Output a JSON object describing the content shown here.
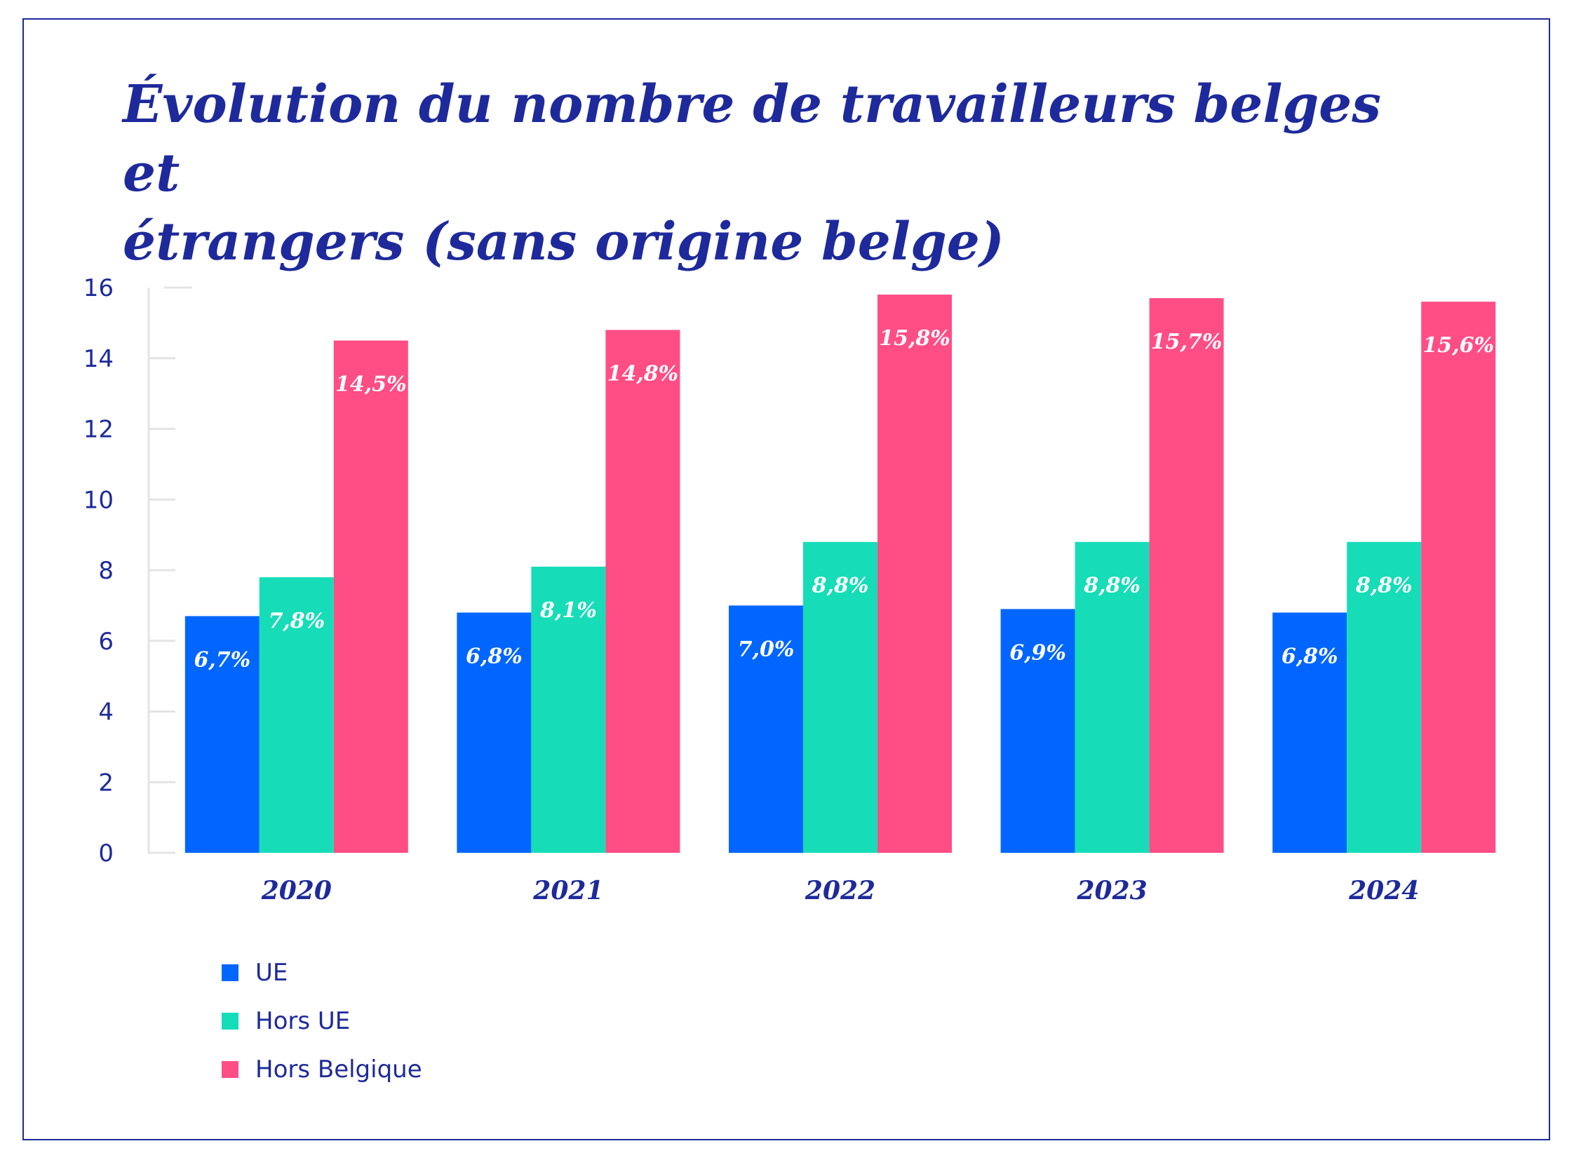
{
  "chart_data": {
    "type": "bar",
    "title": [
      "Évolution du nombre de travailleurs belges et",
      "étrangers  (sans origine belge)"
    ],
    "categories": [
      "2020",
      "2021",
      "2022",
      "2023",
      "2024"
    ],
    "series": [
      {
        "name": "UE",
        "color": "#0066ff",
        "values": [
          6.7,
          6.8,
          7.0,
          6.9,
          6.8
        ],
        "labels": [
          "6,7%",
          "6,8%",
          "7,0%",
          "6,9%",
          "6,8%"
        ]
      },
      {
        "name": "Hors UE",
        "color": "#16ddb7",
        "values": [
          7.8,
          8.1,
          8.8,
          8.8,
          8.8
        ],
        "labels": [
          "7,8%",
          "8,1%",
          "8,8%",
          "8,8%",
          "8,8%"
        ]
      },
      {
        "name": "Hors Belgique",
        "color": "#ff4d85",
        "values": [
          14.5,
          14.8,
          15.8,
          15.7,
          15.6
        ],
        "labels": [
          "14,5%",
          "14,8%",
          "15,8%",
          "15,7%",
          "15,6%"
        ]
      }
    ],
    "yticks": [
      "0",
      "2",
      "4",
      "6",
      "8",
      "10",
      "12",
      "14",
      "16"
    ],
    "ylim": [
      0,
      16
    ],
    "xlabel": "",
    "ylabel": "",
    "grid": false,
    "legend": "bottom-left"
  },
  "colors": {
    "text": "#1e2a9b",
    "axis": "#e4e4e4",
    "frame": "#1e2a9b"
  }
}
